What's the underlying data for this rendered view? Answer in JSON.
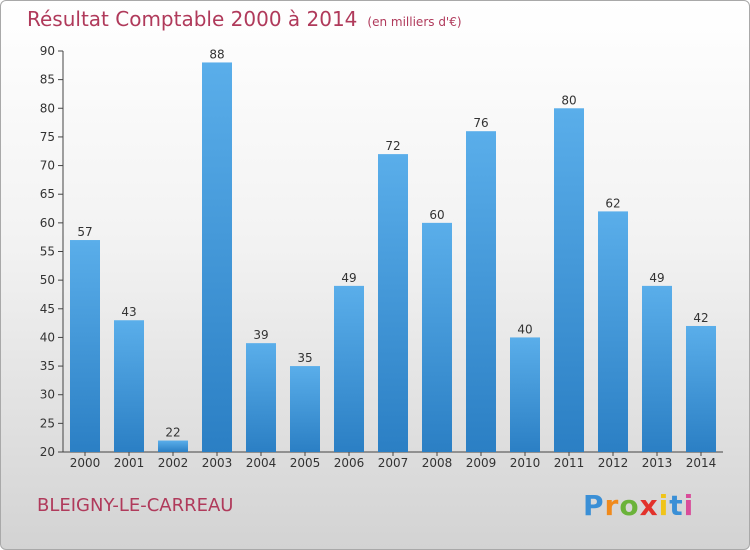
{
  "header": {
    "title": "Résultat Comptable 2000 à 2014",
    "unit": "(en milliers d'€)"
  },
  "footer": {
    "place": "BLEIGNY-LE-CARREAU",
    "logo": "Proxiti"
  },
  "colors": {
    "title": "#b03a5b",
    "bar_light": "#5aaeea",
    "bar_dark": "#2b7fc4"
  },
  "chart_data": {
    "type": "bar",
    "title": "Résultat Comptable 2000 à 2014",
    "subtitle": "(en milliers d'€)",
    "categories": [
      "2000",
      "2001",
      "2002",
      "2003",
      "2004",
      "2005",
      "2006",
      "2007",
      "2008",
      "2009",
      "2010",
      "2011",
      "2012",
      "2013",
      "2014"
    ],
    "values": [
      57,
      43,
      22,
      88,
      39,
      35,
      49,
      72,
      60,
      76,
      40,
      80,
      62,
      49,
      42
    ],
    "ylim": [
      20,
      90
    ],
    "yticks": [
      20,
      25,
      30,
      35,
      40,
      45,
      50,
      55,
      60,
      65,
      70,
      75,
      80,
      85,
      90
    ],
    "grid": false,
    "data_labels": true
  }
}
